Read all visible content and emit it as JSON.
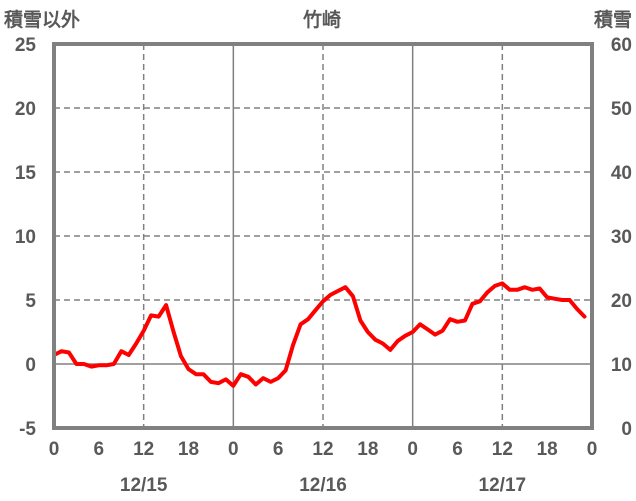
{
  "chart_data": {
    "type": "line",
    "title": "竹崎",
    "left_axis_label": "積雪以外",
    "right_axis_label": "積雪",
    "x_tick_labels": [
      "0",
      "6",
      "12",
      "18",
      "0",
      "6",
      "12",
      "18",
      "0",
      "6",
      "12",
      "18",
      "0"
    ],
    "date_labels": [
      "12/15",
      "12/16",
      "12/17"
    ],
    "y_left": {
      "lim": [
        -5,
        25
      ],
      "ticks": [
        -5,
        0,
        5,
        10,
        15,
        20,
        25
      ]
    },
    "y_right": {
      "lim": [
        0,
        60
      ],
      "ticks": [
        0,
        10,
        20,
        30,
        40,
        50,
        60
      ]
    },
    "x_range_hours": [
      0,
      72
    ],
    "series": [
      {
        "axis": "left",
        "color": "#ff0000",
        "points": [
          [
            0,
            0.7
          ],
          [
            1,
            1.0
          ],
          [
            2,
            0.9
          ],
          [
            3,
            0.0
          ],
          [
            4,
            0.0
          ],
          [
            5,
            -0.2
          ],
          [
            6,
            -0.1
          ],
          [
            7,
            -0.1
          ],
          [
            8,
            0.0
          ],
          [
            9,
            1.0
          ],
          [
            10,
            0.7
          ],
          [
            11,
            1.6
          ],
          [
            12,
            2.6
          ],
          [
            13,
            3.8
          ],
          [
            14,
            3.7
          ],
          [
            15,
            4.6
          ],
          [
            16,
            2.5
          ],
          [
            17,
            0.6
          ],
          [
            18,
            -0.4
          ],
          [
            19,
            -0.8
          ],
          [
            20,
            -0.8
          ],
          [
            21,
            -1.4
          ],
          [
            22,
            -1.5
          ],
          [
            23,
            -1.2
          ],
          [
            24,
            -1.7
          ],
          [
            25,
            -0.8
          ],
          [
            26,
            -1.0
          ],
          [
            27,
            -1.6
          ],
          [
            28,
            -1.1
          ],
          [
            29,
            -1.4
          ],
          [
            30,
            -1.1
          ],
          [
            31,
            -0.5
          ],
          [
            32,
            1.5
          ],
          [
            33,
            3.1
          ],
          [
            34,
            3.5
          ],
          [
            35,
            4.2
          ],
          [
            36,
            4.9
          ],
          [
            37,
            5.4
          ],
          [
            38,
            5.7
          ],
          [
            39,
            6.0
          ],
          [
            40,
            5.3
          ],
          [
            41,
            3.4
          ],
          [
            42,
            2.5
          ],
          [
            43,
            1.9
          ],
          [
            44,
            1.6
          ],
          [
            45,
            1.1
          ],
          [
            46,
            1.8
          ],
          [
            47,
            2.2
          ],
          [
            48,
            2.5
          ],
          [
            49,
            3.1
          ],
          [
            50,
            2.7
          ],
          [
            51,
            2.3
          ],
          [
            52,
            2.6
          ],
          [
            53,
            3.5
          ],
          [
            54,
            3.3
          ],
          [
            55,
            3.4
          ],
          [
            56,
            4.7
          ],
          [
            57,
            4.9
          ],
          [
            58,
            5.6
          ],
          [
            59,
            6.1
          ],
          [
            60,
            6.3
          ],
          [
            61,
            5.8
          ],
          [
            62,
            5.8
          ],
          [
            63,
            6.0
          ],
          [
            64,
            5.8
          ],
          [
            65,
            5.9
          ],
          [
            66,
            5.2
          ],
          [
            67,
            5.1
          ],
          [
            68,
            5.0
          ],
          [
            69,
            5.0
          ],
          [
            70,
            4.3
          ],
          [
            71,
            3.7
          ]
        ]
      },
      {
        "axis": "left",
        "color": "#7030a0",
        "points": [
          [
            0,
            -5
          ],
          [
            72,
            -5
          ]
        ]
      }
    ]
  }
}
